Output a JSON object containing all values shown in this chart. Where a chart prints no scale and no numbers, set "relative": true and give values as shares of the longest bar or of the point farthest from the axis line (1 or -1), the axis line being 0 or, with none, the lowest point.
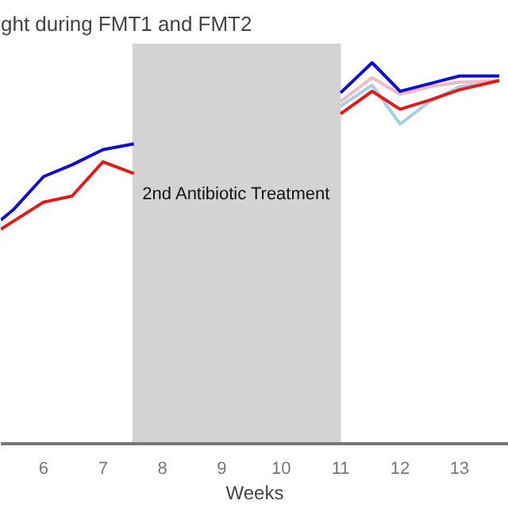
{
  "chart_data": {
    "type": "line",
    "title": "ght during FMT1 and FMT2",
    "xlabel": "Weeks",
    "relative": true,
    "xlim": [
      5.28,
      13.83
    ],
    "xticks": [
      6,
      7,
      8,
      9,
      10,
      11,
      12,
      13
    ],
    "grid": false,
    "line_style": "solid",
    "bands": [
      {
        "axis": "x",
        "from": 7.5,
        "to": 11,
        "label": "2nd Antibiotic Treatment",
        "color": "#d3d3d3"
      }
    ],
    "series": [
      {
        "color": "#a8cfe0",
        "x": [
          11.0,
          11.53,
          12,
          12.5,
          13,
          13.67
        ],
        "values": [
          0.886,
          0.941,
          0.839,
          0.898,
          0.937,
          0.953
        ]
      },
      {
        "color": "#f2b8c6",
        "x": [
          11.0,
          11.53,
          12,
          12.5,
          13,
          13.67
        ],
        "values": [
          0.898,
          0.961,
          0.917,
          0.937,
          0.949,
          0.953
        ]
      },
      {
        "color": "#dd1c1c",
        "x": [
          5.28,
          6,
          6.48,
          7,
          7.52,
          9,
          11.0,
          11.53,
          12,
          12.5,
          13,
          13.67
        ],
        "values": [
          0.563,
          0.634,
          0.65,
          0.74,
          0.709,
          null,
          0.866,
          0.925,
          0.878,
          0.902,
          0.929,
          0.953
        ]
      },
      {
        "color": "#1010c8",
        "x": [
          5.28,
          5.49,
          6,
          6.48,
          7,
          7.52,
          9,
          11.0,
          11.53,
          12,
          12.5,
          13,
          13.67
        ],
        "values": [
          0.587,
          0.614,
          0.701,
          0.732,
          0.772,
          0.787,
          null,
          0.921,
          1.0,
          0.925,
          0.945,
          0.965,
          0.965
        ]
      }
    ]
  }
}
